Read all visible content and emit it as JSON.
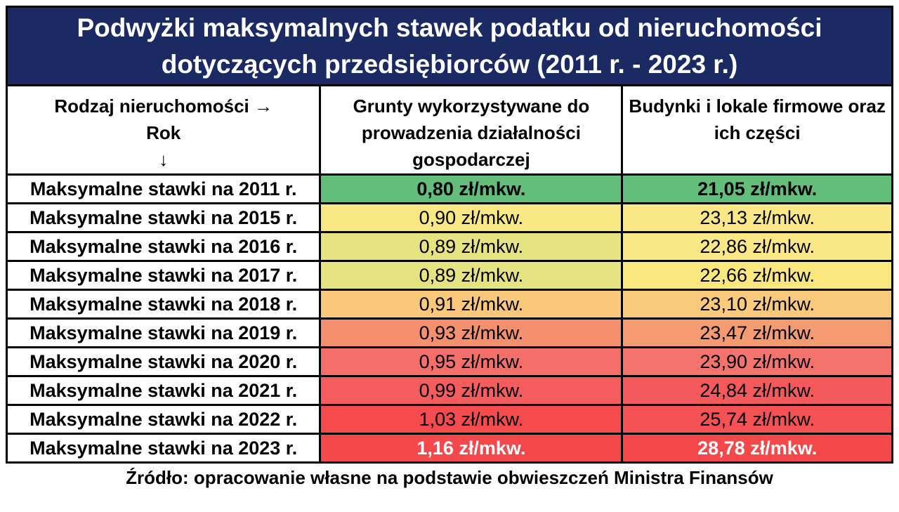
{
  "title": {
    "line1": "Podwyżki maksymalnych stawek podatku od nieruchomości",
    "line2": "dotyczących przedsiębiorców (2011 r. - 2023 r.)"
  },
  "colors": {
    "banner_bg": "#1B2A63",
    "banner_text": "#FFFFFF",
    "border": "#000000",
    "label_bg": "#FFFFFF",
    "scale_green": "#63BD7B",
    "scale_yellow": "#F7E883",
    "scale_red": "#F4484B"
  },
  "table": {
    "header": {
      "col1_line1": "Rodzaj nieruchomości →",
      "col1_line2": "Rok",
      "col1_line3": "↓",
      "col2": "Grunty wykorzystywane do prowadzenia działalności gospodarczej",
      "col3": "Budynki i lokale firmowe oraz ich części"
    },
    "rows": [
      {
        "label": "Maksymalne stawki na 2011 r.",
        "grunty": "0,80 zł/mkw.",
        "budynki": "21,05 zł/mkw.",
        "grunty_bg": "#63BD7B",
        "budynki_bg": "#63BD7B",
        "emphasis": "bold-black"
      },
      {
        "label": "Maksymalne stawki na 2015 r.",
        "grunty": "0,90 zł/mkw.",
        "budynki": "23,13 zł/mkw.",
        "grunty_bg": "#F7E883",
        "budynki_bg": "#FAE886",
        "emphasis": "normal"
      },
      {
        "label": "Maksymalne stawki na 2016 r.",
        "grunty": "0,89 zł/mkw.",
        "budynki": "22,86 zł/mkw.",
        "grunty_bg": "#E6E383",
        "budynki_bg": "#FAE886",
        "emphasis": "normal"
      },
      {
        "label": "Maksymalne stawki na 2017 r.",
        "grunty": "0,89 zł/mkw.",
        "budynki": "22,66 zł/mkw.",
        "grunty_bg": "#E6E383",
        "budynki_bg": "#FAE87E",
        "emphasis": "normal"
      },
      {
        "label": "Maksymalne stawki na 2018 r.",
        "grunty": "0,91 zł/mkw.",
        "budynki": "23,10 zł/mkw.",
        "grunty_bg": "#F9C87A",
        "budynki_bg": "#F9CA7C",
        "emphasis": "normal"
      },
      {
        "label": "Maksymalne stawki na 2019 r.",
        "grunty": "0,93 zł/mkw.",
        "budynki": "23,47 zł/mkw.",
        "grunty_bg": "#F4906D",
        "budynki_bg": "#F49B72",
        "emphasis": "normal"
      },
      {
        "label": "Maksymalne stawki na 2020 r.",
        "grunty": "0,95 zł/mkw.",
        "budynki": "23,90 zł/mkw.",
        "grunty_bg": "#F46F6A",
        "budynki_bg": "#F4736D",
        "emphasis": "normal"
      },
      {
        "label": "Maksymalne stawki na 2021 r.",
        "grunty": "0,99 zł/mkw.",
        "budynki": "24,84 zł/mkw.",
        "grunty_bg": "#F55C5E",
        "budynki_bg": "#F45A5C",
        "emphasis": "normal"
      },
      {
        "label": "Maksymalne stawki na 2022 r.",
        "grunty": "1,03 zł/mkw.",
        "budynki": "25,74 zł/mkw.",
        "grunty_bg": "#F54B4E",
        "budynki_bg": "#F45254",
        "emphasis": "normal"
      },
      {
        "label": "Maksymalne stawki na 2023 r.",
        "grunty": "1,16 zł/mkw.",
        "budynki": "28,78 zł/mkw.",
        "grunty_bg": "#F4484B",
        "budynki_bg": "#F4484B",
        "emphasis": "bold-white"
      }
    ]
  },
  "footer": {
    "source": "Źródło: opracowanie własne na podstawie obwieszczeń Ministra Finansów"
  },
  "chart_data": {
    "type": "table",
    "title": "Podwyżki maksymalnych stawek podatku od nieruchomości dotyczących przedsiębiorców (2011 r. - 2023 r.)",
    "columns": [
      "Rodzaj nieruchomości / Rok",
      "Grunty wykorzystywane do prowadzenia działalności gospodarczej",
      "Budynki i lokale firmowe oraz ich części"
    ],
    "categories": [
      "2011",
      "2015",
      "2016",
      "2017",
      "2018",
      "2019",
      "2020",
      "2021",
      "2022",
      "2023"
    ],
    "series": [
      {
        "name": "Grunty wykorzystywane do prowadzenia działalności gospodarczej (zł/mkw.)",
        "values": [
          0.8,
          0.9,
          0.89,
          0.89,
          0.91,
          0.93,
          0.95,
          0.99,
          1.03,
          1.16
        ]
      },
      {
        "name": "Budynki i lokale firmowe oraz ich części (zł/mkw.)",
        "values": [
          21.05,
          23.13,
          22.86,
          22.66,
          23.1,
          23.47,
          23.9,
          24.84,
          25.74,
          28.78
        ]
      }
    ],
    "annotation": "Źródło: opracowanie własne na podstawie obwieszczeń Ministra Finansów",
    "layout_hints": "heatmap cell shading from green (lowest) through yellow/orange to red (highest), per column; first and last data rows in bold"
  }
}
